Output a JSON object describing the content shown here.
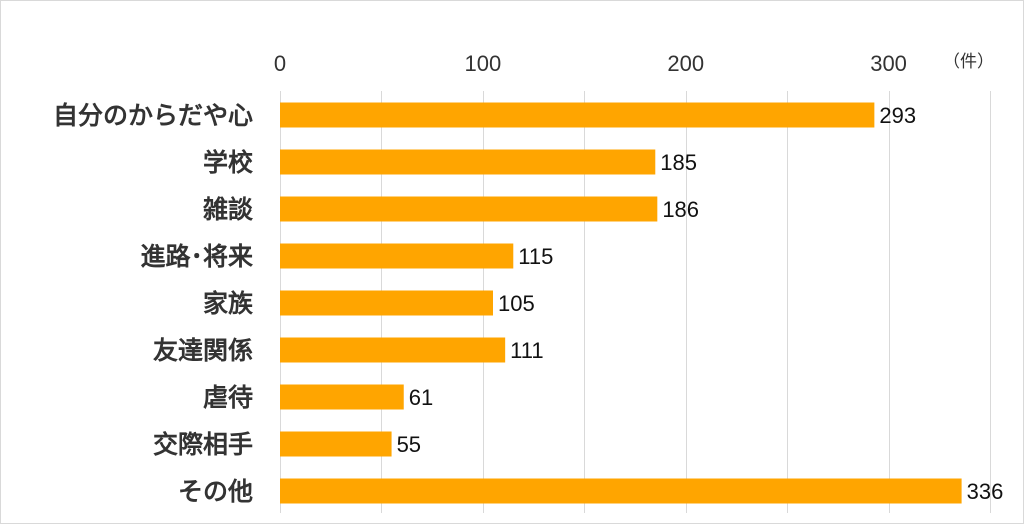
{
  "chart_data": {
    "type": "bar",
    "orientation": "horizontal",
    "title": "",
    "xlabel": "",
    "ylabel": "",
    "unit": "（件）",
    "categories": [
      "自分のからだや心",
      "学校",
      "雑談",
      "進路･将来",
      "家族",
      "友達関係",
      "虐待",
      "交際相手",
      "その他"
    ],
    "values": [
      293,
      185,
      186,
      115,
      105,
      111,
      61,
      55,
      336
    ],
    "xlim": [
      0,
      350
    ],
    "xticks": [
      0,
      100,
      200,
      300
    ],
    "tick_labels": [
      "0",
      "100",
      "200",
      "300"
    ],
    "grid": true,
    "legend": "none",
    "bar_color": "#FFA500",
    "grid_color": "#d9d9d9"
  }
}
